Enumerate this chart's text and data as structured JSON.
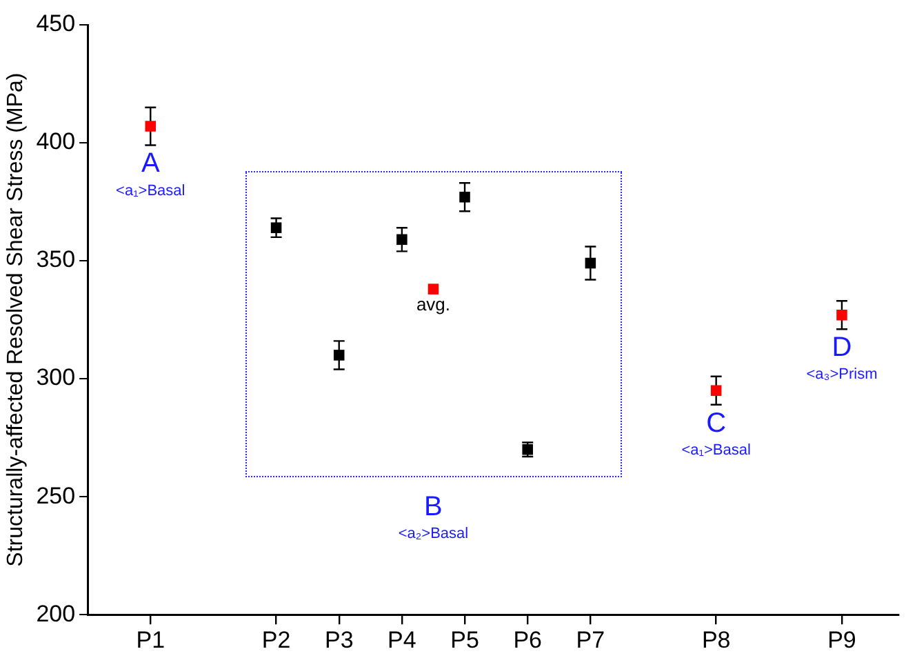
{
  "chart_data": {
    "type": "scatter",
    "ylabel": "Structurally-affected Resolved Shear Stress (MPa)",
    "categories": [
      "P1",
      null,
      null,
      null,
      "P2",
      null,
      "P3",
      null,
      "P4",
      null,
      "P5",
      null,
      "P6",
      null,
      "P7",
      null,
      null,
      null,
      "P8",
      null,
      null,
      null,
      "P9"
    ],
    "ylim": [
      200,
      450
    ],
    "yticks": [
      200,
      250,
      300,
      350,
      400,
      450
    ],
    "series": [
      {
        "color": "#ff0000",
        "values": [
          407,
          null,
          null,
          null,
          null,
          null,
          null,
          null,
          null,
          338,
          null,
          null,
          null,
          null,
          null,
          null,
          null,
          null,
          295,
          null,
          null,
          null,
          327
        ],
        "errors": [
          8,
          null,
          null,
          null,
          null,
          null,
          null,
          null,
          null,
          null,
          null,
          null,
          null,
          null,
          null,
          null,
          null,
          null,
          6,
          null,
          null,
          null,
          6
        ]
      },
      {
        "color": "#000000",
        "values": [
          null,
          null,
          null,
          null,
          364,
          null,
          310,
          null,
          359,
          null,
          377,
          null,
          270,
          null,
          349,
          null,
          null,
          null,
          null,
          null,
          null,
          null,
          null
        ],
        "errors": [
          null,
          null,
          null,
          null,
          4,
          null,
          6,
          null,
          5,
          null,
          6,
          null,
          3,
          null,
          7,
          null,
          null,
          null,
          null,
          null,
          null,
          null,
          null
        ]
      }
    ],
    "annotations": [
      "A\n<a₁>Basal",
      "avg.",
      "C\n<a₁>Basal",
      "D\n<a₃>Prism",
      "B\n<a₂>Basal"
    ],
    "marker": "square",
    "grid": false,
    "legend": false
  }
}
